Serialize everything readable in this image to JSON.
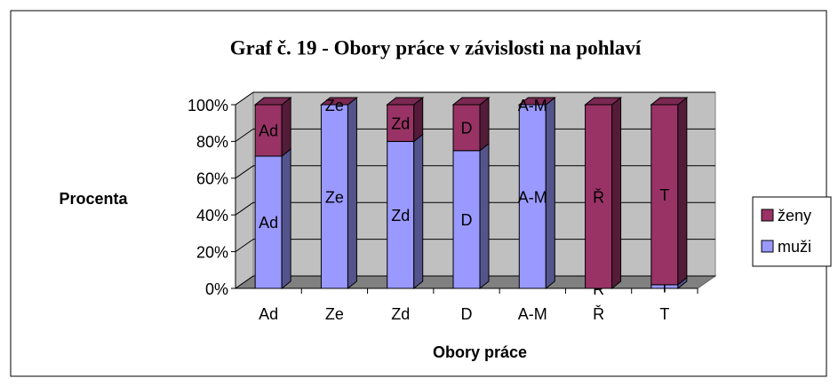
{
  "chart_data": {
    "type": "bar3d_stacked",
    "title": "Graf č. 19  - Obory práce v závislosti na pohlaví",
    "x_label": "Obory práce",
    "y_label": "Procenta",
    "categories": [
      "Ad",
      "Ze",
      "Zd",
      "D",
      "A-M",
      "Ř",
      "T"
    ],
    "series": [
      {
        "name": "muži",
        "color": "#9999ff",
        "values": [
          72,
          100,
          80,
          75,
          100,
          0,
          2
        ]
      },
      {
        "name": "ženy",
        "color": "#993366",
        "values": [
          28,
          0,
          20,
          25,
          0,
          100,
          98
        ]
      }
    ],
    "ylim": [
      0,
      100
    ],
    "yticks": [
      {
        "value": 0,
        "label": "0%"
      },
      {
        "value": 20,
        "label": "20%"
      },
      {
        "value": 40,
        "label": "40%"
      },
      {
        "value": 60,
        "label": "60%"
      },
      {
        "value": 80,
        "label": "80%"
      },
      {
        "value": 100,
        "label": "100%"
      }
    ],
    "grid": true,
    "legend": "right"
  }
}
